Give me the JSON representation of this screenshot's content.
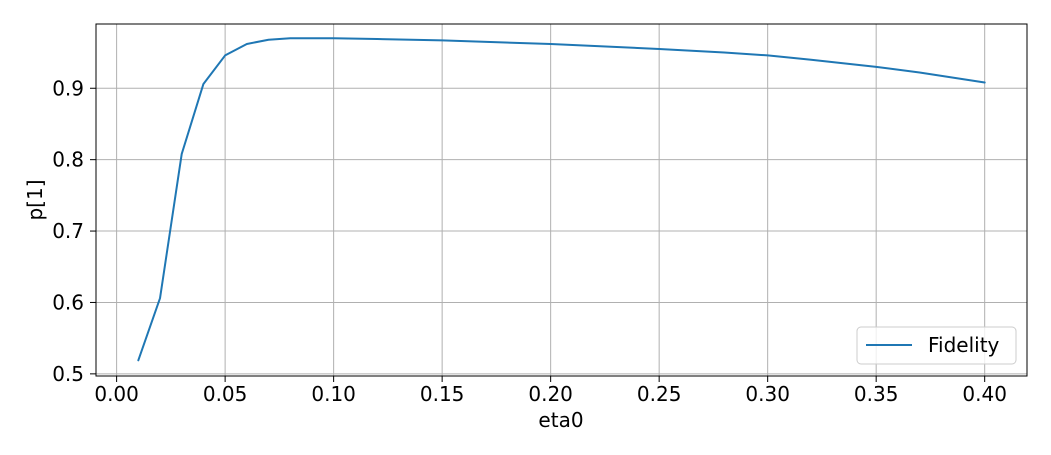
{
  "chart_data": {
    "type": "line",
    "xlabel": "eta0",
    "ylabel": "p[1]",
    "xlim": [
      -0.0095,
      0.4195
    ],
    "ylim": [
      0.497,
      0.99
    ],
    "xticks": [
      0.0,
      0.05,
      0.1,
      0.15,
      0.2,
      0.25,
      0.3,
      0.35,
      0.4
    ],
    "xtick_labels": [
      "0.00",
      "0.05",
      "0.10",
      "0.15",
      "0.20",
      "0.25",
      "0.30",
      "0.35",
      "0.40"
    ],
    "yticks": [
      0.5,
      0.6,
      0.7,
      0.8,
      0.9
    ],
    "ytick_labels": [
      "0.5",
      "0.6",
      "0.7",
      "0.8",
      "0.9"
    ],
    "grid": true,
    "legend_position": "lower-right",
    "series": [
      {
        "name": "Fidelity",
        "color": "#1f77b4",
        "x": [
          0.01,
          0.02,
          0.03,
          0.04,
          0.05,
          0.06,
          0.07,
          0.08,
          0.09,
          0.1,
          0.12,
          0.15,
          0.2,
          0.25,
          0.28,
          0.3,
          0.32,
          0.35,
          0.37,
          0.4
        ],
        "y": [
          0.519,
          0.606,
          0.808,
          0.906,
          0.946,
          0.962,
          0.968,
          0.97,
          0.97,
          0.97,
          0.969,
          0.967,
          0.962,
          0.955,
          0.95,
          0.946,
          0.94,
          0.93,
          0.922,
          0.908
        ]
      }
    ]
  }
}
